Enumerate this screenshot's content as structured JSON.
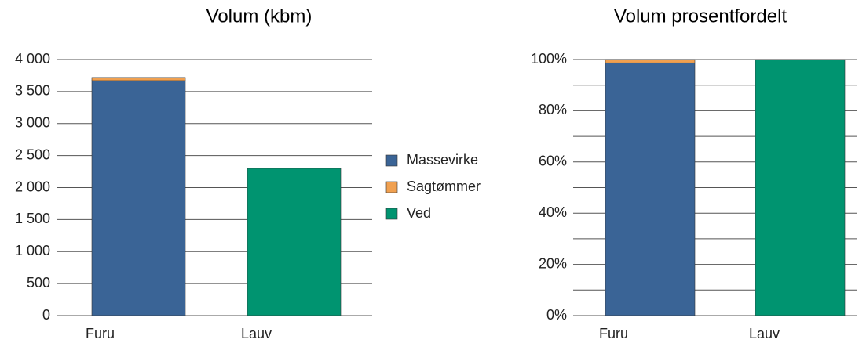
{
  "chart_data": [
    {
      "type": "stacked_bar",
      "title": "Volum (kbm)",
      "categories": [
        "Furu",
        "Lauv"
      ],
      "series": [
        {
          "name": "Massevirke",
          "color": "#3a6496",
          "values": [
            3670,
            0
          ]
        },
        {
          "name": "Sagtømmer",
          "color": "#f0a050",
          "values": [
            50,
            0
          ]
        },
        {
          "name": "Ved",
          "color": "#009470",
          "values": [
            0,
            2300
          ]
        }
      ],
      "ylim": [
        0,
        4000
      ],
      "yticks": [
        0,
        500,
        {
          "value": 1000,
          "label": "1 000"
        },
        {
          "value": 1500,
          "label": "1 500"
        },
        {
          "value": 2000,
          "label": "2 000"
        },
        {
          "value": 2500,
          "label": "2 500"
        },
        {
          "value": 3000,
          "label": "3 000"
        },
        {
          "value": 3500,
          "label": "3 500"
        },
        {
          "value": 4000,
          "label": "4 000"
        }
      ],
      "grid": true,
      "legend": "right"
    },
    {
      "type": "stacked_bar",
      "title": "Volum prosentfordelt",
      "categories": [
        "Furu",
        "Lauv"
      ],
      "series": [
        {
          "name": "Massevirke",
          "color": "#3a6496",
          "values": [
            98.7,
            0
          ]
        },
        {
          "name": "Sagtømmer",
          "color": "#f0a050",
          "values": [
            1.3,
            0
          ]
        },
        {
          "name": "Ved",
          "color": "#009470",
          "values": [
            0,
            100
          ]
        }
      ],
      "ylim": [
        0,
        100
      ],
      "yticks": [
        {
          "value": 0,
          "label": "0%"
        },
        {
          "value": 20,
          "label": "20%"
        },
        {
          "value": 40,
          "label": "40%"
        },
        {
          "value": 60,
          "label": "60%"
        },
        {
          "value": 80,
          "label": "80%"
        },
        {
          "value": 100,
          "label": "100%"
        }
      ],
      "minor_yticks": [
        10,
        30,
        50,
        70,
        90
      ],
      "grid": true
    }
  ]
}
